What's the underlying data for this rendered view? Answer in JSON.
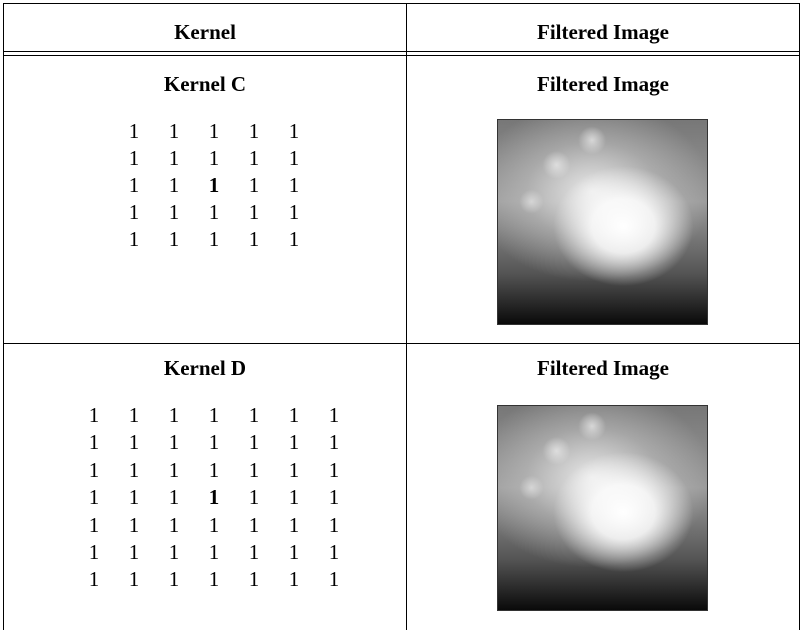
{
  "table": {
    "header": [
      "Kernel",
      "Filtered Image"
    ],
    "rows": [
      {
        "kernel_title": "Kernel C",
        "image_title": "Filtered Image",
        "kernel": [
          [
            1,
            1,
            1,
            1,
            1
          ],
          [
            1,
            1,
            1,
            1,
            1
          ],
          [
            1,
            1,
            1,
            1,
            1
          ],
          [
            1,
            1,
            1,
            1,
            1
          ],
          [
            1,
            1,
            1,
            1,
            1
          ]
        ]
      },
      {
        "kernel_title": "Kernel D",
        "image_title": "Filtered Image",
        "kernel": [
          [
            1,
            1,
            1,
            1,
            1,
            1,
            1
          ],
          [
            1,
            1,
            1,
            1,
            1,
            1,
            1
          ],
          [
            1,
            1,
            1,
            1,
            1,
            1,
            1
          ],
          [
            1,
            1,
            1,
            1,
            1,
            1,
            1
          ],
          [
            1,
            1,
            1,
            1,
            1,
            1,
            1
          ],
          [
            1,
            1,
            1,
            1,
            1,
            1,
            1
          ],
          [
            1,
            1,
            1,
            1,
            1,
            1,
            1
          ]
        ]
      }
    ]
  }
}
